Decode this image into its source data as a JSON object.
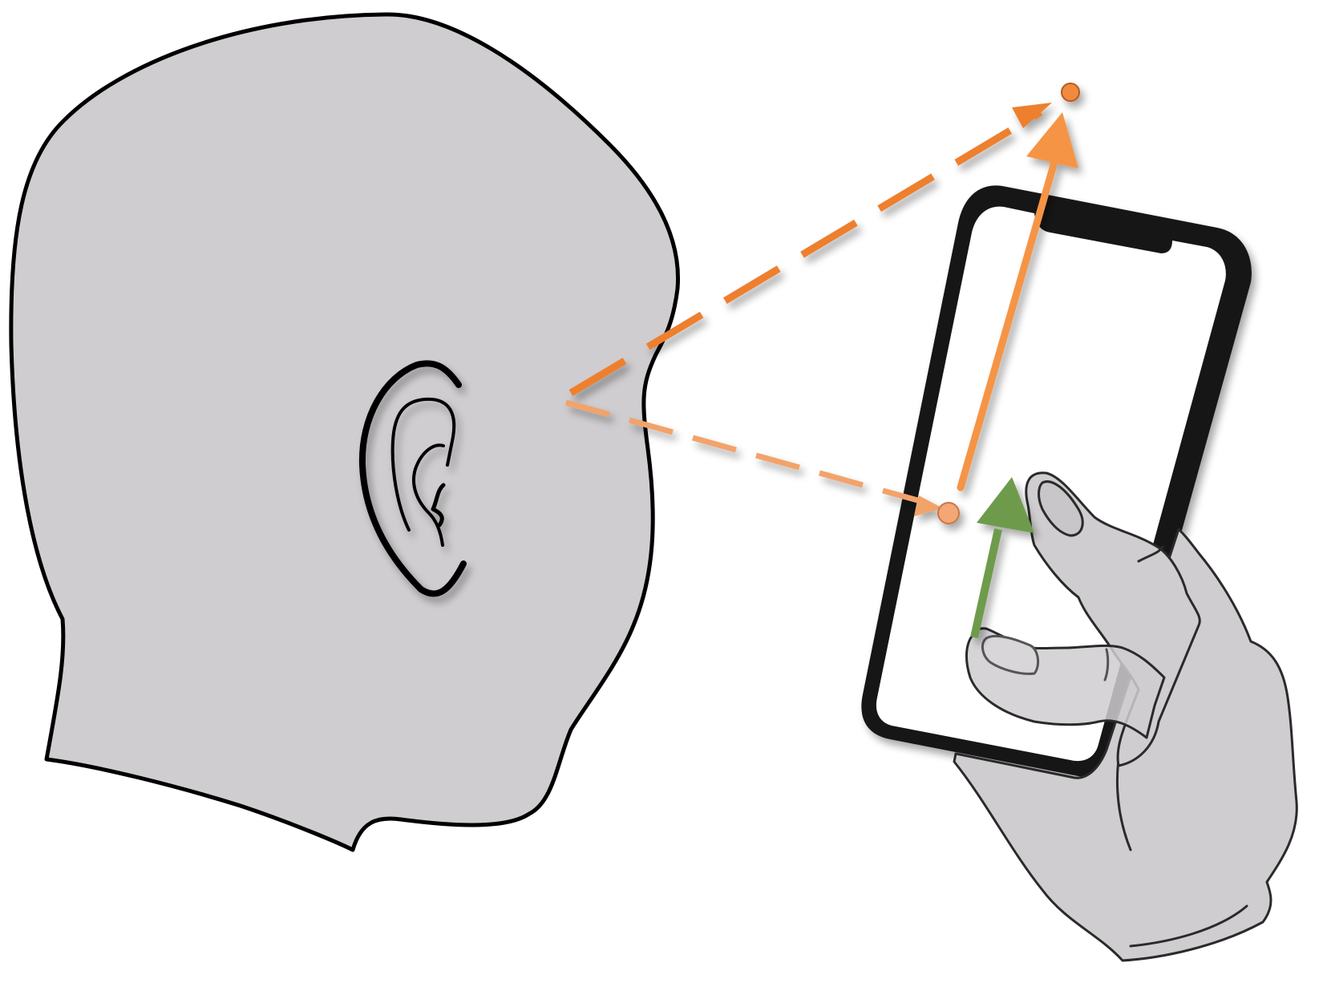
{
  "colors": {
    "background": "#ffffff",
    "skin": "#cfcdcf",
    "outline": "#000000",
    "hand_outline": "#2a2a2a",
    "phone_frame": "#141414",
    "phone_screen": "#ffffff",
    "gaze_line": "#ee7f2d",
    "gaze_line_light": "#f2a36a",
    "phone_motion_arrow": "#f69445",
    "target_dot": "#f08a3c",
    "target_dot_light": "#f4a675",
    "finger_motion_arrow": "#6e9b4c"
  },
  "icons": {
    "head": "head-profile-icon",
    "ear": "ear-icon",
    "phone": "smartphone-icon",
    "hand": "hand-icon"
  }
}
